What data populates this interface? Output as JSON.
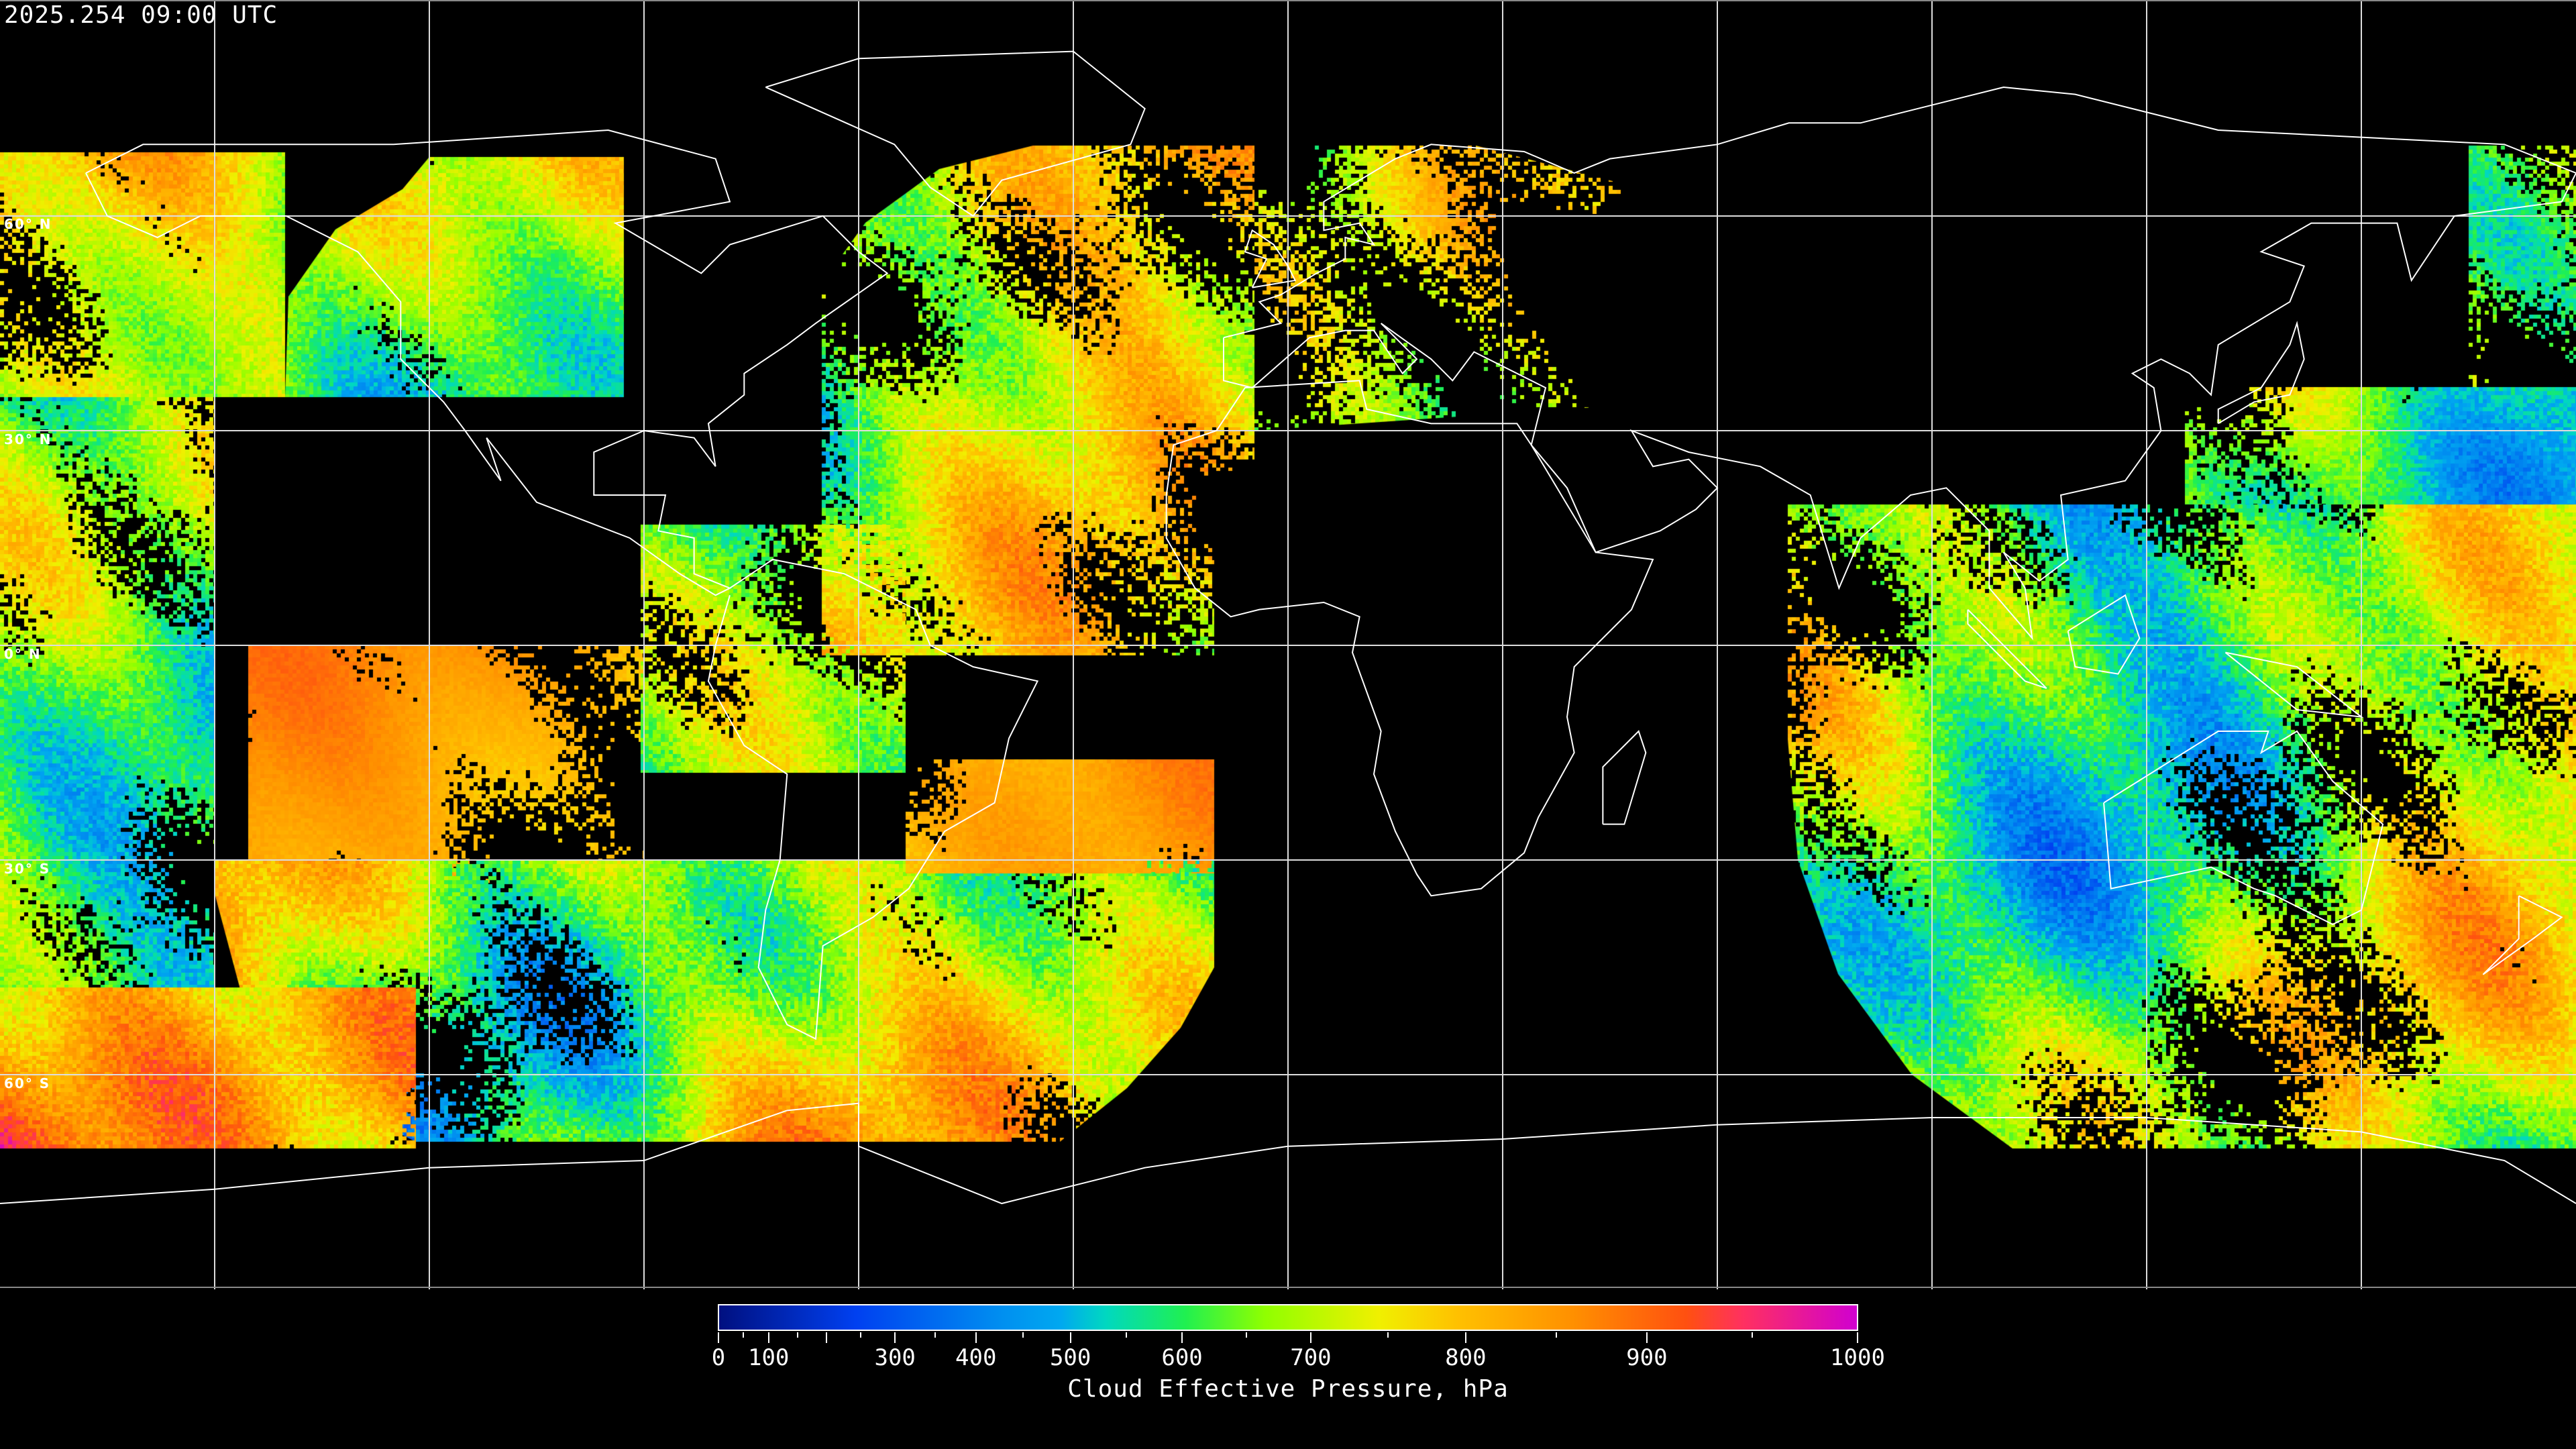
{
  "header": {
    "timestamp": "2025.254 09:00 UTC"
  },
  "map": {
    "projection": "equirectangular",
    "graticule_lat_labels": [
      "60° N",
      "30° N",
      "0° N",
      "30° S",
      "60° S"
    ],
    "graticule_lats": [
      60,
      30,
      0,
      -30,
      -60
    ],
    "graticule_spacing_deg": 30,
    "coastline_color": "#ffffff",
    "no_data_color": "#000000"
  },
  "colorbar": {
    "title": "Cloud Effective Pressure, hPa",
    "min": 0,
    "max": 1000,
    "labels": [
      "0",
      "100",
      "300",
      "400",
      "500",
      "600",
      "700",
      "800",
      "900",
      "1000"
    ],
    "label_values": [
      0,
      100,
      300,
      400,
      500,
      600,
      700,
      800,
      900,
      1000
    ],
    "colors": [
      "#001080",
      "#0040f0",
      "#0090f0",
      "#00a8f0",
      "#00d8c0",
      "#20f050",
      "#90ff00",
      "#f0f000",
      "#ffc000",
      "#ff9000",
      "#ff5010",
      "#ff3060",
      "#d000d0"
    ]
  }
}
